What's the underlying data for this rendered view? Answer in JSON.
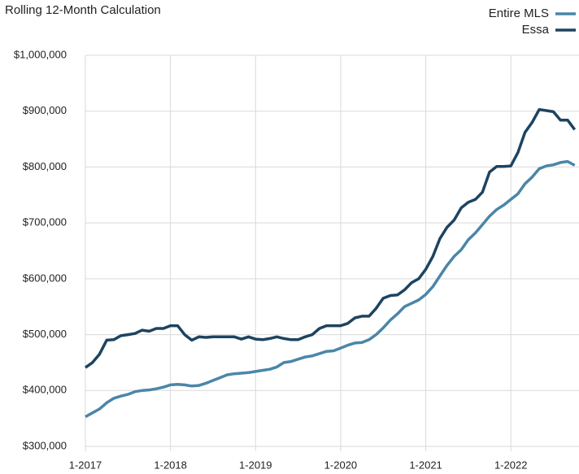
{
  "chart_data": {
    "type": "line",
    "title": "Rolling 12-Month Calculation",
    "categories": [
      "1-2017",
      null,
      null,
      null,
      null,
      null,
      null,
      null,
      null,
      null,
      null,
      null,
      "1-2018",
      null,
      null,
      null,
      null,
      null,
      null,
      null,
      null,
      null,
      null,
      null,
      "1-2019",
      null,
      null,
      null,
      null,
      null,
      null,
      null,
      null,
      null,
      null,
      null,
      "1-2020",
      null,
      null,
      null,
      null,
      null,
      null,
      null,
      null,
      null,
      null,
      null,
      "1-2021",
      null,
      null,
      null,
      null,
      null,
      null,
      null,
      null,
      null,
      null,
      null,
      "1-2022",
      null,
      null,
      null,
      null,
      null,
      null,
      null,
      null,
      null
    ],
    "series": [
      {
        "name": "Entire MLS",
        "color": "#4a86a8",
        "values": [
          353000,
          360000,
          367000,
          378000,
          386000,
          390000,
          393000,
          398000,
          400000,
          401000,
          403000,
          406000,
          410000,
          411000,
          410000,
          408000,
          409000,
          413000,
          418000,
          423000,
          428000,
          430000,
          431000,
          432000,
          434000,
          436000,
          438000,
          442000,
          450000,
          452000,
          456000,
          460000,
          462000,
          466000,
          470000,
          471000,
          476000,
          481000,
          485000,
          486000,
          491000,
          500000,
          512000,
          526000,
          537000,
          550000,
          556000,
          562000,
          572000,
          586000,
          605000,
          624000,
          640000,
          652000,
          670000,
          682000,
          697000,
          712000,
          724000,
          732000,
          742000,
          752000,
          770000,
          782000,
          797000,
          802000,
          804000,
          808000,
          810000,
          803000
        ]
      },
      {
        "name": "Essa",
        "color": "#1d4460",
        "values": [
          441000,
          450000,
          465000,
          490000,
          491000,
          498000,
          500000,
          502000,
          508000,
          506000,
          511000,
          511000,
          516000,
          516000,
          500000,
          490000,
          496000,
          495000,
          496000,
          496000,
          496000,
          496000,
          492000,
          496000,
          492000,
          491000,
          493000,
          496000,
          493000,
          491000,
          491000,
          496000,
          500000,
          511000,
          516000,
          516000,
          516000,
          520000,
          530000,
          533000,
          533000,
          547000,
          565000,
          570000,
          571000,
          580000,
          593000,
          600000,
          617000,
          640000,
          672000,
          692000,
          705000,
          727000,
          737000,
          742000,
          755000,
          791000,
          801000,
          801000,
          802000,
          826000,
          862000,
          880000,
          903000,
          901000,
          899000,
          884000,
          884000,
          867000
        ]
      }
    ],
    "ylim": [
      300000,
      1000000
    ],
    "yticks": [
      {
        "value": 300000,
        "label": "$300,000"
      },
      {
        "value": 400000,
        "label": "$400,000"
      },
      {
        "value": 500000,
        "label": "$500,000"
      },
      {
        "value": 600000,
        "label": "$600,000"
      },
      {
        "value": 700000,
        "label": "$700,000"
      },
      {
        "value": 800000,
        "label": "$800,000"
      },
      {
        "value": 900000,
        "label": "$900,000"
      },
      {
        "value": 1000000,
        "label": "$1,000,000"
      }
    ],
    "grid": true,
    "legend": "top-right"
  }
}
